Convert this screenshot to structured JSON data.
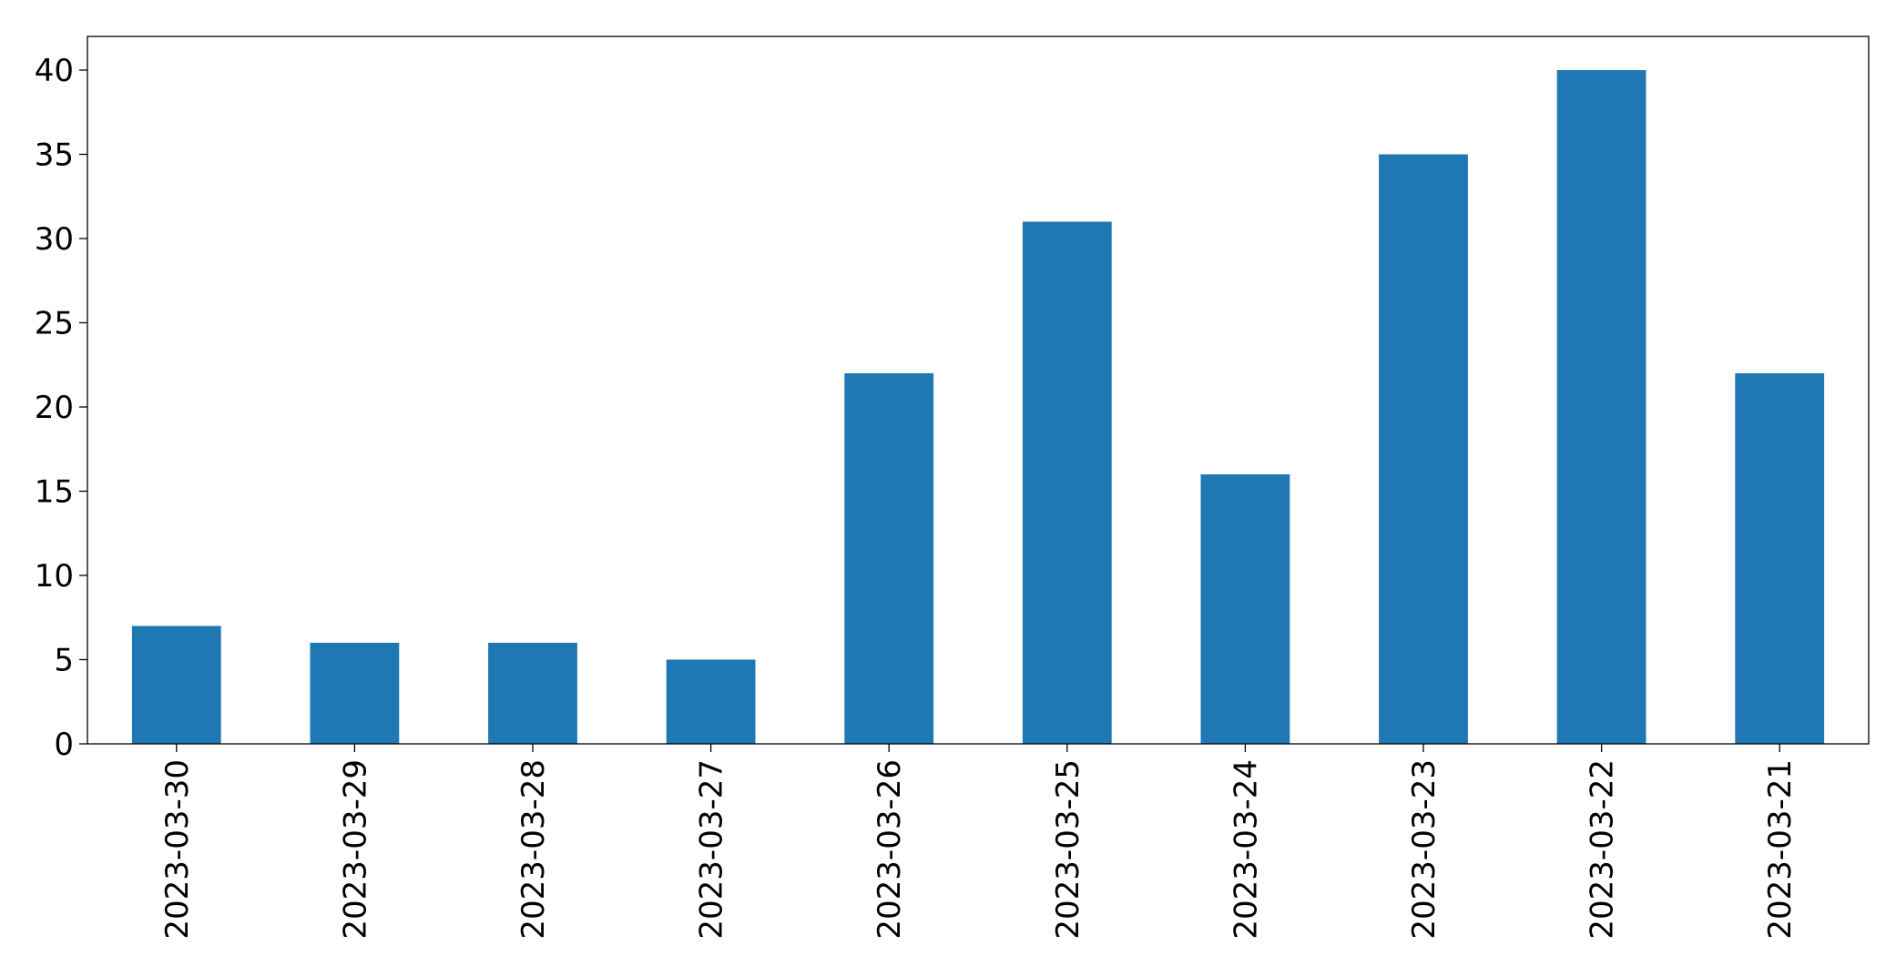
{
  "chart_data": {
    "type": "bar",
    "categories": [
      "2023-03-30",
      "2023-03-29",
      "2023-03-28",
      "2023-03-27",
      "2023-03-26",
      "2023-03-25",
      "2023-03-24",
      "2023-03-23",
      "2023-03-22",
      "2023-03-21"
    ],
    "values": [
      7,
      6,
      6,
      5,
      22,
      31,
      16,
      35,
      40,
      22
    ],
    "color": "#1f77b4",
    "ylim": [
      0,
      42
    ],
    "yticks": [
      0,
      5,
      10,
      15,
      20,
      25,
      30,
      35,
      40
    ],
    "grid": false
  }
}
